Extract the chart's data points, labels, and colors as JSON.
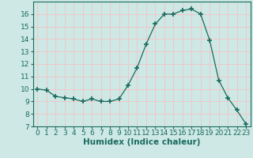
{
  "x": [
    0,
    1,
    2,
    3,
    4,
    5,
    6,
    7,
    8,
    9,
    10,
    11,
    12,
    13,
    14,
    15,
    16,
    17,
    18,
    19,
    20,
    21,
    22,
    23
  ],
  "y": [
    10.0,
    9.9,
    9.4,
    9.3,
    9.2,
    9.0,
    9.2,
    9.0,
    9.0,
    9.2,
    10.3,
    11.7,
    13.6,
    15.2,
    16.0,
    16.0,
    16.3,
    16.4,
    16.0,
    13.9,
    10.7,
    9.3,
    8.3,
    7.2
  ],
  "line_color": "#1a6b5e",
  "marker": "+",
  "marker_size": 4,
  "marker_linewidth": 1.2,
  "bg_color": "#cde8e5",
  "grid_color": "#f0c8c8",
  "xlabel": "Humidex (Indice chaleur)",
  "xlim": [
    -0.5,
    23.5
  ],
  "ylim": [
    7,
    17
  ],
  "yticks": [
    7,
    8,
    9,
    10,
    11,
    12,
    13,
    14,
    15,
    16
  ],
  "xticks": [
    0,
    1,
    2,
    3,
    4,
    5,
    6,
    7,
    8,
    9,
    10,
    11,
    12,
    13,
    14,
    15,
    16,
    17,
    18,
    19,
    20,
    21,
    22,
    23
  ],
  "xlabel_fontsize": 7.5,
  "tick_fontsize": 6.5
}
